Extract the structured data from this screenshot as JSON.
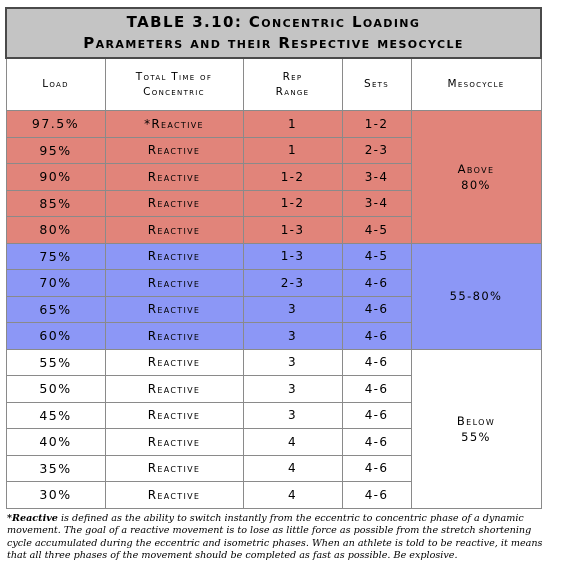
{
  "title_line1": "TABLE 3.10: Concentric Loading",
  "title_line2": "Parameters and their Respective mesocycle",
  "headers": {
    "load": "Load",
    "time_line1": "Total Time of",
    "time_line2": "Concentric",
    "rep_line1": "Rep",
    "rep_line2": "Range",
    "sets": "Sets",
    "mesocycle": "Mesocycle"
  },
  "rows": [
    {
      "load": "97.5%",
      "time": "*Reactive",
      "rep": "1",
      "sets": "1-2"
    },
    {
      "load": "95%",
      "time": "Reactive",
      "rep": "1",
      "sets": "2-3"
    },
    {
      "load": "90%",
      "time": "Reactive",
      "rep": "1-2",
      "sets": "3-4"
    },
    {
      "load": "85%",
      "time": "Reactive",
      "rep": "1-2",
      "sets": "3-4"
    },
    {
      "load": "80%",
      "time": "Reactive",
      "rep": "1-3",
      "sets": "4-5"
    },
    {
      "load": "75%",
      "time": "Reactive",
      "rep": "1-3",
      "sets": "4-5"
    },
    {
      "load": "70%",
      "time": "Reactive",
      "rep": "2-3",
      "sets": "4-6"
    },
    {
      "load": "65%",
      "time": "Reactive",
      "rep": "3",
      "sets": "4-6"
    },
    {
      "load": "60%",
      "time": "Reactive",
      "rep": "3",
      "sets": "4-6"
    },
    {
      "load": "55%",
      "time": "Reactive",
      "rep": "3",
      "sets": "4-6"
    },
    {
      "load": "50%",
      "time": "Reactive",
      "rep": "3",
      "sets": "4-6"
    },
    {
      "load": "45%",
      "time": "Reactive",
      "rep": "3",
      "sets": "4-6"
    },
    {
      "load": "40%",
      "time": "Reactive",
      "rep": "4",
      "sets": "4-6"
    },
    {
      "load": "35%",
      "time": "Reactive",
      "rep": "4",
      "sets": "4-6"
    },
    {
      "load": "30%",
      "time": "Reactive",
      "rep": "4",
      "sets": "4-6"
    }
  ],
  "mesocycles": {
    "above_line1": "Above",
    "above_line2": "80%",
    "mid": "55-80%",
    "below_line1": "Below",
    "below_line2": "55%"
  },
  "colors": {
    "red": "#e1847a",
    "blue": "#8c97f6",
    "white": "#ffffff",
    "title_bg": "#c4c4c4"
  },
  "footnote": {
    "term": "*Reactive",
    "text": " is defined as the ability to switch instantly from the eccentric to concentric phase of a dynamic movement. The goal of a reactive movement is to lose as little force as possible from the stretch shortening cycle accumulated during the eccentric and isometric phases. When an athlete is told to be reactive, it means that all three phases of the movement should be completed as fast as possible. Be explosive."
  }
}
